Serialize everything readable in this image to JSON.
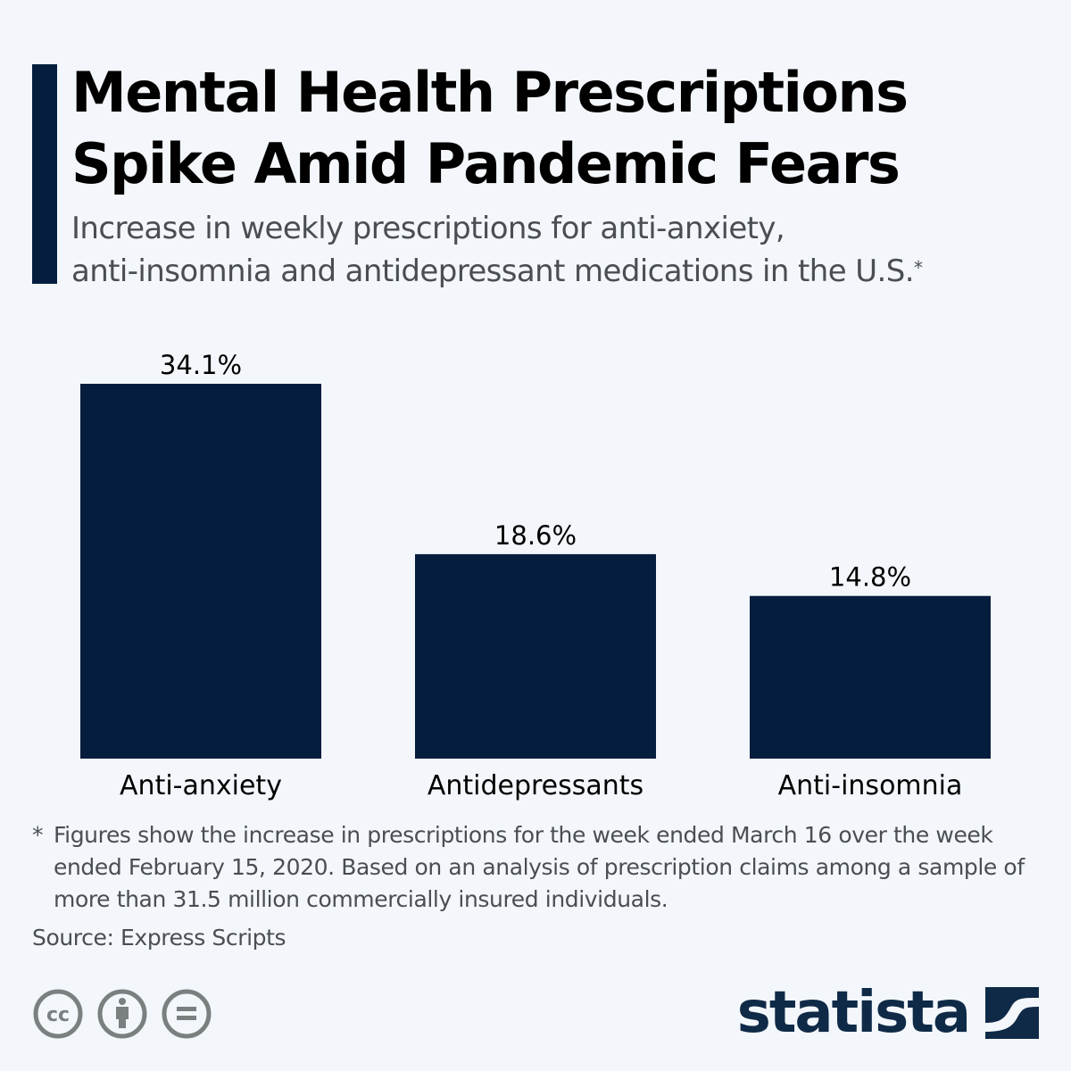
{
  "header": {
    "title_line1": "Mental Health Prescriptions",
    "title_line2": "Spike Amid Pandemic Fears",
    "subtitle_line1": "Increase in weekly prescriptions for anti-anxiety,",
    "subtitle_line2": "anti-insomnia and antidepressant medications in the U.S.",
    "subtitle_mark": "*"
  },
  "chart_data": {
    "type": "bar",
    "title": "Mental Health Prescriptions Spike Amid Pandemic Fears",
    "subtitle": "Increase in weekly prescriptions for anti-anxiety, anti-insomnia and antidepressant medications in the U.S.*",
    "categories": [
      "Anti-anxiety",
      "Antidepressants",
      "Anti-insomnia"
    ],
    "values": [
      34.1,
      18.6,
      14.8
    ],
    "data_labels": [
      "34.1%",
      "18.6%",
      "14.8%"
    ],
    "unit": "%",
    "xlabel": "",
    "ylabel": "",
    "ylim": [
      0,
      34.1
    ],
    "grid": false,
    "bar_color": "#061e3e"
  },
  "footer": {
    "note_mark": "*",
    "note_text": "Figures show the increase in prescriptions for the week ended March 16 over the week ended February 15, 2020. Based on an analysis of prescription claims among a sample of more than 31.5 million commercially insured individuals.",
    "source": "Source: Express Scripts",
    "license_icons": [
      "cc-icon",
      "attribution-icon",
      "no-derivatives-icon"
    ],
    "brand": "statista",
    "brand_color": "#0f2a47",
    "icon_color": "#7a7f80"
  }
}
